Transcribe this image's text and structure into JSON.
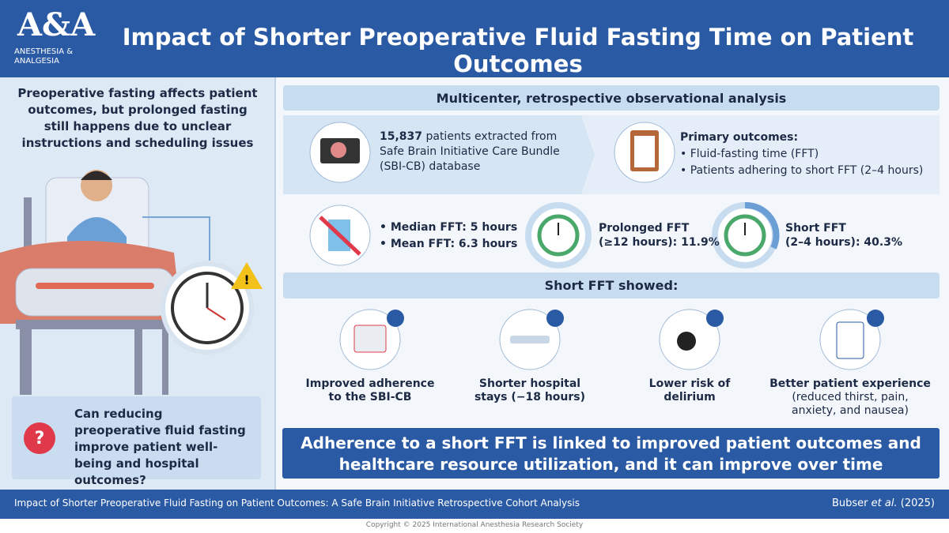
{
  "header": {
    "logo_mark": "A&A",
    "logo_lines": [
      "ANESTHESIA &",
      "ANALGESIA"
    ],
    "title": "Impact of Shorter Preoperative Fluid Fasting Time on Patient Outcomes"
  },
  "left": {
    "intro": "Preoperative fasting affects patient outcomes, but prolonged fasting still happens due to unclear instructions and scheduling issues",
    "question_mark": "?",
    "question": "Can reducing preoperative fluid fasting improve patient well-being and hospital outcomes?"
  },
  "study": {
    "design": "Multicenter, retrospective observational analysis",
    "patients": {
      "count": "15,837",
      "text": " patients extracted from Safe Brain Initiative Care Bundle (SBI-CB) database"
    },
    "outcomes": {
      "title": "Primary outcomes:",
      "items": [
        "• Fluid-fasting time (FFT)",
        "• Patients adhering to short FFT (2–4 hours)"
      ]
    }
  },
  "fft": {
    "stats": [
      "• Median FFT: 5 hours",
      "• Mean FFT: 6.3 hours"
    ],
    "prolonged": [
      "Prolonged FFT",
      "(≥12 hours): 11.9%"
    ],
    "short": [
      "Short FFT",
      "(2–4 hours): 40.3%"
    ]
  },
  "findings": {
    "title": "Short FFT showed:",
    "items": [
      [
        "Improved adherence",
        "to the SBI-CB"
      ],
      [
        "Shorter hospital",
        "stays (−18 hours)"
      ],
      [
        "Lower risk of",
        "delirium"
      ],
      [
        "Better patient experience",
        "(reduced thirst, pain,",
        "anxiety, and nausea)"
      ]
    ]
  },
  "conclusion": "Adherence to a short FFT is linked to improved patient outcomes and healthcare resource utilization, and it can improve over time",
  "footer": {
    "citation": "Impact of Shorter Preoperative Fluid Fasting on Patient Outcomes: A Safe Brain Initiative Retrospective Cohort Analysis",
    "author": "Bubser",
    "etal": "et al.",
    "year": "(2025)",
    "copyright": "Copyright © 2025 International Anesthesia Research Society"
  }
}
